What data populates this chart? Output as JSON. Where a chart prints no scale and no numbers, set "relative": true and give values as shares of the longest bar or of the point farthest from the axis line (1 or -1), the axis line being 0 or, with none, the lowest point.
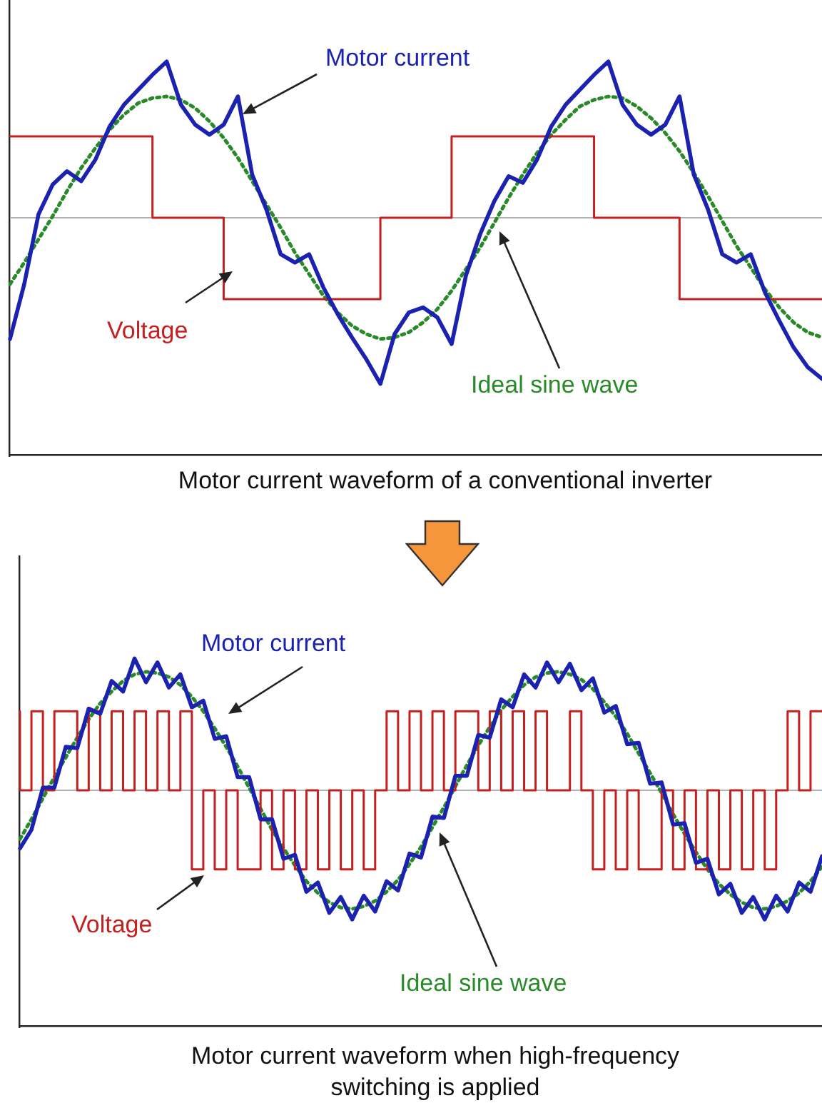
{
  "chart_data": [
    {
      "type": "line",
      "relative": true,
      "grid": false,
      "legend": false,
      "marker": "none",
      "tick_labels": false,
      "title": "Motor current waveform of a conventional inverter",
      "categories": [
        null,
        null,
        null,
        null,
        null,
        null,
        null,
        null,
        null,
        null,
        null,
        null,
        null,
        null,
        null,
        null,
        null,
        null,
        null,
        null,
        null,
        null,
        null,
        null,
        null,
        null,
        null,
        null,
        null,
        null,
        null,
        null,
        null,
        null,
        null,
        null,
        null,
        null,
        null,
        null,
        null,
        null,
        null,
        null,
        null,
        null,
        null,
        null,
        null,
        null,
        null,
        null,
        null,
        null,
        null,
        null,
        null,
        null
      ],
      "series": [
        {
          "name": "Motor current",
          "color": "#1c22b0",
          "values": [
            -0.73,
            -0.4,
            0.02,
            0.2,
            0.28,
            0.22,
            0.35,
            0.55,
            0.68,
            0.77,
            0.86,
            0.94,
            0.68,
            0.56,
            0.5,
            0.56,
            0.73,
            0.26,
            0.05,
            -0.22,
            -0.27,
            -0.22,
            -0.42,
            -0.58,
            -0.72,
            -0.85,
            -1.0,
            -0.7,
            -0.57,
            -0.54,
            -0.6,
            -0.76,
            -0.35,
            -0.1,
            0.1,
            0.25,
            0.21,
            0.35,
            0.55,
            0.68,
            0.77,
            0.86,
            0.94,
            0.68,
            0.56,
            0.5,
            0.56,
            0.73,
            0.26,
            0.05,
            -0.22,
            -0.27,
            -0.22,
            -0.45,
            -0.62,
            -0.78,
            -0.9,
            -0.97
          ]
        },
        {
          "name": "Voltage",
          "type": "step",
          "color": "#c42020",
          "values": [
            0.49,
            0.49,
            0.49,
            0.49,
            0.49,
            0.49,
            0.49,
            0.49,
            0.49,
            0.49,
            0.49,
            0,
            0,
            0,
            0,
            0,
            -0.49,
            -0.49,
            -0.49,
            -0.49,
            -0.49,
            -0.49,
            -0.49,
            -0.49,
            -0.49,
            -0.49,
            -0.49,
            0,
            0,
            0,
            0,
            0,
            0.49,
            0.49,
            0.49,
            0.49,
            0.49,
            0.49,
            0.49,
            0.49,
            0.49,
            0.49,
            0,
            0,
            0,
            0,
            0,
            0,
            -0.49,
            -0.49,
            -0.49,
            -0.49,
            -0.49,
            -0.49,
            -0.49,
            -0.49,
            -0.49,
            -0.49
          ]
        },
        {
          "name": "Ideal sine wave",
          "line_style": "dotted",
          "color": "#2a8a2a",
          "values": [
            -0.4,
            -0.27,
            -0.13,
            0.01,
            0.16,
            0.3,
            0.42,
            0.53,
            0.62,
            0.69,
            0.72,
            0.73,
            0.71,
            0.66,
            0.58,
            0.48,
            0.36,
            0.22,
            0.08,
            -0.06,
            -0.21,
            -0.34,
            -0.47,
            -0.57,
            -0.65,
            -0.7,
            -0.73,
            -0.72,
            -0.69,
            -0.63,
            -0.55,
            -0.44,
            -0.31,
            -0.18,
            -0.03,
            0.12,
            0.26,
            0.39,
            0.5,
            0.59,
            0.67,
            0.71,
            0.73,
            0.72,
            0.67,
            0.6,
            0.51,
            0.4,
            0.27,
            0.13,
            -0.02,
            -0.17,
            -0.3,
            -0.43,
            -0.54,
            -0.63,
            -0.69,
            -0.72
          ]
        }
      ]
    },
    {
      "type": "line",
      "relative": true,
      "grid": false,
      "legend": false,
      "marker": "none",
      "tick_labels": false,
      "title": "Motor current waveform when high-frequency switching is applied",
      "categories": [
        null,
        null,
        null,
        null,
        null,
        null,
        null,
        null,
        null,
        null,
        null,
        null,
        null,
        null,
        null,
        null,
        null,
        null,
        null,
        null,
        null,
        null,
        null,
        null,
        null,
        null,
        null,
        null,
        null,
        null,
        null,
        null,
        null,
        null,
        null,
        null,
        null,
        null,
        null,
        null,
        null,
        null,
        null,
        null,
        null,
        null,
        null,
        null,
        null,
        null,
        null,
        null,
        null,
        null,
        null,
        null,
        null,
        null,
        null,
        null,
        null,
        null,
        null,
        null,
        null,
        null,
        null,
        null,
        null,
        null,
        null
      ],
      "series": [
        {
          "name": "Motor current",
          "color": "#1c22b0",
          "values": [
            -0.44,
            -0.3,
            0.02,
            0.02,
            0.33,
            0.32,
            0.62,
            0.58,
            0.83,
            0.75,
            1.0,
            0.82,
            0.97,
            0.78,
            0.88,
            0.63,
            0.68,
            0.39,
            0.41,
            0.1,
            0.1,
            -0.22,
            -0.22,
            -0.52,
            -0.49,
            -0.77,
            -0.7,
            -0.93,
            -0.81,
            -0.98,
            -0.8,
            -0.92,
            -0.69,
            -0.76,
            -0.48,
            -0.51,
            -0.2,
            -0.21,
            0.11,
            0.11,
            0.42,
            0.4,
            0.69,
            0.63,
            0.88,
            0.78,
            0.97,
            0.82,
            0.96,
            0.76,
            0.85,
            0.59,
            0.64,
            0.35,
            0.36,
            0.05,
            0.06,
            -0.26,
            -0.25,
            -0.55,
            -0.52,
            -0.79,
            -0.71,
            -0.93,
            -0.81,
            -0.98,
            -0.8,
            -0.92,
            -0.7,
            -0.77,
            -0.5
          ]
        },
        {
          "name": "Voltage",
          "type": "step",
          "color": "#c42020",
          "values": [
            0.6,
            0,
            0.6,
            0,
            0.6,
            0.6,
            0,
            0.6,
            0,
            0.6,
            0,
            0.6,
            0,
            0.6,
            0,
            0.6,
            -0.6,
            0,
            -0.6,
            0,
            -0.6,
            -0.6,
            0,
            -0.6,
            0,
            -0.6,
            0,
            -0.6,
            0,
            -0.6,
            0,
            -0.6,
            0,
            0.6,
            0,
            0.6,
            0,
            0.6,
            0,
            0.6,
            0.6,
            0,
            0.6,
            0,
            0.6,
            0,
            0.6,
            0,
            0,
            0.6,
            0,
            -0.6,
            0,
            -0.6,
            0,
            -0.6,
            -0.6,
            0,
            -0.6,
            0,
            -0.6,
            0,
            -0.6,
            0,
            -0.6,
            0,
            -0.6,
            0,
            0.6,
            0,
            0.6
          ]
        },
        {
          "name": "Ideal sine wave",
          "line_style": "dotted",
          "color": "#2a8a2a",
          "values": [
            -0.37,
            -0.22,
            -0.06,
            0.1,
            0.25,
            0.4,
            0.54,
            0.66,
            0.75,
            0.83,
            0.88,
            0.9,
            0.89,
            0.86,
            0.8,
            0.71,
            0.6,
            0.47,
            0.33,
            0.18,
            0.02,
            -0.14,
            -0.3,
            -0.44,
            -0.57,
            -0.69,
            -0.78,
            -0.85,
            -0.89,
            -0.9,
            -0.88,
            -0.84,
            -0.77,
            -0.68,
            -0.56,
            -0.43,
            -0.28,
            -0.13,
            0.03,
            0.19,
            0.34,
            0.48,
            0.61,
            0.71,
            0.8,
            0.86,
            0.89,
            0.9,
            0.88,
            0.84,
            0.77,
            0.67,
            0.56,
            0.43,
            0.28,
            0.13,
            -0.02,
            -0.18,
            -0.33,
            -0.47,
            -0.6,
            -0.71,
            -0.79,
            -0.85,
            -0.89,
            -0.9,
            -0.88,
            -0.84,
            -0.78,
            -0.69,
            -0.58
          ]
        }
      ]
    }
  ]
}
